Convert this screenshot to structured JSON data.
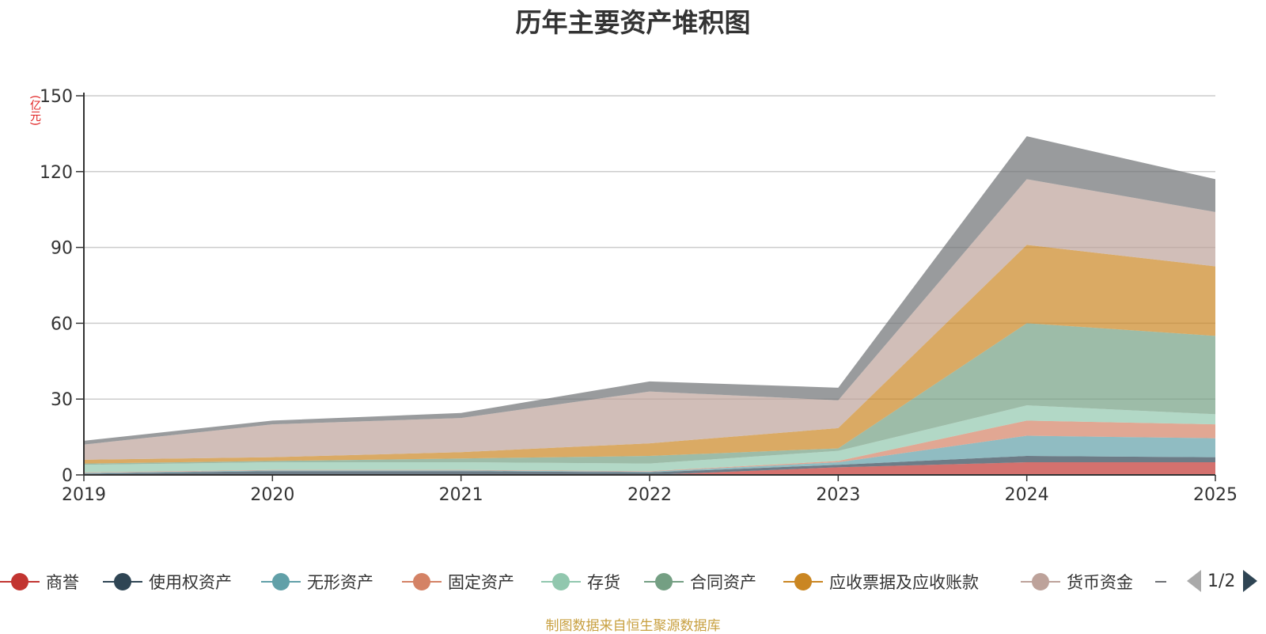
{
  "chart_data": {
    "type": "area",
    "stacked": true,
    "title": "历年主要资产堆积图",
    "unit_label": "(亿元)",
    "x": [
      "2019",
      "2020",
      "2021",
      "2022",
      "2023",
      "2024",
      "2025"
    ],
    "ylim": [
      0,
      150
    ],
    "yticks": [
      0,
      30,
      60,
      90,
      120,
      150
    ],
    "grid": true,
    "legend_position": "bottom",
    "series": [
      {
        "name": "商誉",
        "color": "#c23531",
        "values": [
          0,
          0,
          0,
          0,
          3,
          5,
          5
        ]
      },
      {
        "name": "使用权资产",
        "color": "#2f4554",
        "values": [
          0.5,
          1.5,
          1.5,
          1,
          1,
          2.5,
          2
        ]
      },
      {
        "name": "无形资产",
        "color": "#61a0a8",
        "values": [
          0.3,
          0.3,
          0.3,
          0.3,
          1,
          8,
          7.5
        ]
      },
      {
        "name": "固定资产",
        "color": "#d48265",
        "values": [
          0.2,
          0.2,
          0.2,
          0.2,
          0.5,
          6,
          5.5
        ]
      },
      {
        "name": "存货",
        "color": "#91c7ae",
        "values": [
          3,
          3,
          3,
          3,
          4,
          6,
          4
        ]
      },
      {
        "name": "合同资产",
        "color": "#749f83",
        "values": [
          0.5,
          0.5,
          1.5,
          3,
          1,
          32.5,
          31
        ]
      },
      {
        "name": "应收票据及应收账款",
        "color": "#ca8622",
        "values": [
          1.5,
          1.5,
          2.5,
          5,
          8,
          31,
          27.5
        ]
      },
      {
        "name": "货币资金",
        "color": "#bda29a",
        "values": [
          6,
          13,
          13.5,
          20.5,
          11,
          26,
          21.5
        ]
      },
      {
        "name": "",
        "color": "#6e7074",
        "values": [
          1.5,
          1.5,
          2,
          4,
          5,
          17,
          13
        ]
      }
    ]
  },
  "legend": {
    "page": "1/2"
  },
  "source": "制图数据来自恒生聚源数据库"
}
